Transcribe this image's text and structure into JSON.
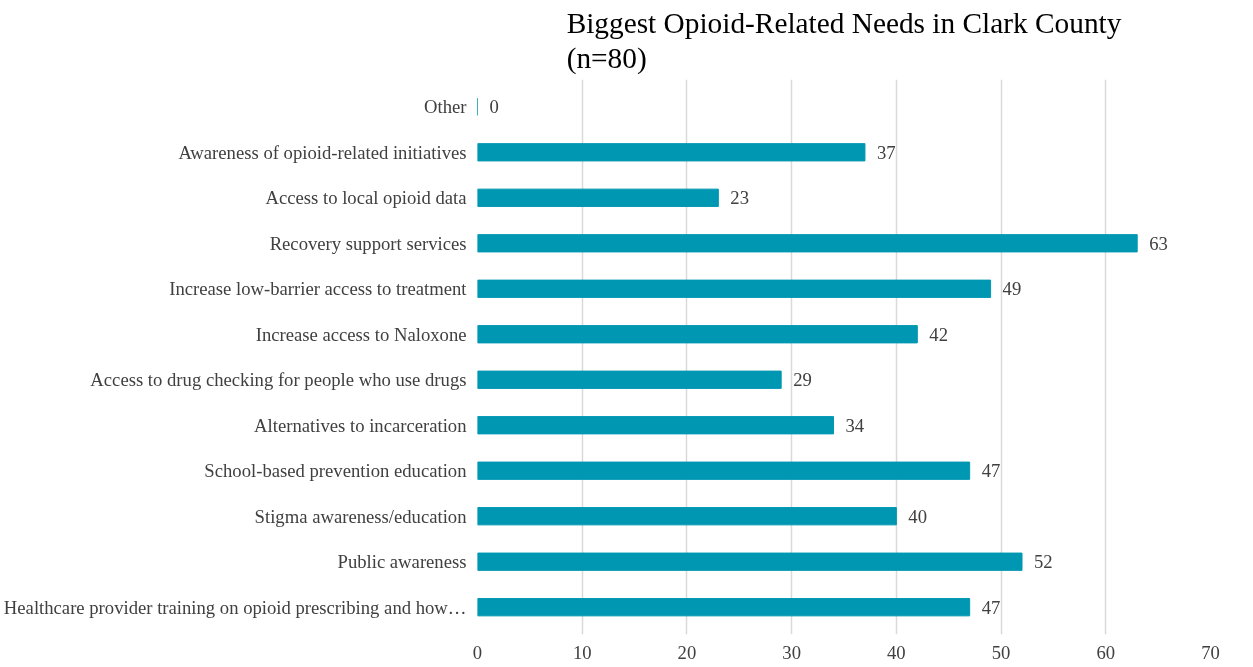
{
  "chart_data": {
    "type": "bar",
    "orientation": "horizontal",
    "title": "Biggest Opioid-Related Needs in Clark County\n(n=80)",
    "categories": [
      "Other",
      "Awareness of opioid-related initiatives",
      "Access to local opioid data",
      "Recovery support services",
      "Increase low-barrier access to treatment",
      "Increase access to Naloxone",
      "Access to drug checking for people who use drugs",
      "Alternatives to incarceration",
      "School-based prevention education",
      "Stigma awareness/education",
      "Public awareness",
      "Healthcare provider training on opioid prescribing and how…"
    ],
    "values": [
      0,
      37,
      23,
      63,
      49,
      42,
      29,
      34,
      47,
      40,
      52,
      47
    ],
    "color": "#0097b2",
    "xlim": [
      0,
      70
    ],
    "xticks": [
      0,
      10,
      20,
      30,
      40,
      50,
      60,
      70
    ],
    "grid": "x",
    "data_labels": true
  }
}
